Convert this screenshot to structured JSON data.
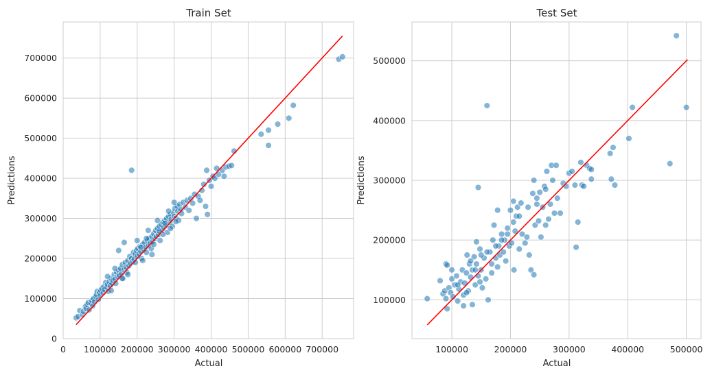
{
  "chart_data": [
    {
      "type": "scatter",
      "title": "Train Set",
      "xlabel": "Actual",
      "ylabel": "Predictions",
      "xlim": [
        0,
        785000
      ],
      "ylim": [
        0,
        790000
      ],
      "xticks": [
        "0",
        "100000",
        "200000",
        "300000",
        "400000",
        "500000",
        "600000",
        "700000"
      ],
      "xtick_values": [
        0,
        100000,
        200000,
        300000,
        400000,
        500000,
        600000,
        700000
      ],
      "yticks": [
        "0",
        "100000",
        "200000",
        "300000",
        "400000",
        "500000",
        "600000",
        "700000"
      ],
      "ytick_values": [
        0,
        100000,
        200000,
        300000,
        400000,
        500000,
        600000,
        700000
      ],
      "grid": true,
      "point_color": "#1f77b4",
      "line_color": "#ff0000",
      "reference_line": {
        "x": [
          35000,
          755000
        ],
        "y": [
          35000,
          755000
        ]
      },
      "points": [
        [
          35000,
          52000
        ],
        [
          40000,
          55000
        ],
        [
          45000,
          70000
        ],
        [
          52000,
          60000
        ],
        [
          55000,
          68000
        ],
        [
          60000,
          80000
        ],
        [
          62000,
          75000
        ],
        [
          65000,
          85000
        ],
        [
          68000,
          90000
        ],
        [
          70000,
          72000
        ],
        [
          75000,
          88000
        ],
        [
          78000,
          95000
        ],
        [
          80000,
          82000
        ],
        [
          82000,
          100000
        ],
        [
          85000,
          92000
        ],
        [
          88000,
          105000
        ],
        [
          90000,
          110000
        ],
        [
          92000,
          118000
        ],
        [
          95000,
          98000
        ],
        [
          98000,
          115000
        ],
        [
          100000,
          108000
        ],
        [
          102000,
          120000
        ],
        [
          105000,
          125000
        ],
        [
          108000,
          115000
        ],
        [
          110000,
          130000
        ],
        [
          112000,
          122000
        ],
        [
          115000,
          140000
        ],
        [
          118000,
          128000
        ],
        [
          120000,
          135000
        ],
        [
          122000,
          118000
        ],
        [
          125000,
          142000
        ],
        [
          128000,
          132000
        ],
        [
          130000,
          150000
        ],
        [
          132000,
          138000
        ],
        [
          135000,
          145000
        ],
        [
          138000,
          160000
        ],
        [
          140000,
          148000
        ],
        [
          142000,
          138000
        ],
        [
          145000,
          165000
        ],
        [
          148000,
          155000
        ],
        [
          150000,
          170000
        ],
        [
          152000,
          158000
        ],
        [
          155000,
          175000
        ],
        [
          158000,
          162000
        ],
        [
          160000,
          185000
        ],
        [
          162000,
          150000
        ],
        [
          165000,
          172000
        ],
        [
          168000,
          190000
        ],
        [
          170000,
          178000
        ],
        [
          172000,
          165000
        ],
        [
          175000,
          195000
        ],
        [
          178000,
          182000
        ],
        [
          180000,
          205000
        ],
        [
          182000,
          188000
        ],
        [
          185000,
          200000
        ],
        [
          188000,
          192000
        ],
        [
          190000,
          215000
        ],
        [
          192000,
          198000
        ],
        [
          195000,
          210000
        ],
        [
          198000,
          220000
        ],
        [
          200000,
          205000
        ],
        [
          202000,
          225000
        ],
        [
          205000,
          212000
        ],
        [
          208000,
          230000
        ],
        [
          210000,
          218000
        ],
        [
          212000,
          200000
        ],
        [
          215000,
          235000
        ],
        [
          218000,
          222000
        ],
        [
          220000,
          240000
        ],
        [
          222000,
          228000
        ],
        [
          225000,
          215000
        ],
        [
          228000,
          245000
        ],
        [
          230000,
          232000
        ],
        [
          232000,
          250000
        ],
        [
          235000,
          238000
        ],
        [
          238000,
          225000
        ],
        [
          240000,
          255000
        ],
        [
          242000,
          242000
        ],
        [
          245000,
          262000
        ],
        [
          248000,
          250000
        ],
        [
          250000,
          270000
        ],
        [
          252000,
          255000
        ],
        [
          255000,
          275000
        ],
        [
          258000,
          260000
        ],
        [
          260000,
          280000
        ],
        [
          262000,
          245000
        ],
        [
          265000,
          285000
        ],
        [
          268000,
          270000
        ],
        [
          270000,
          290000
        ],
        [
          272000,
          278000
        ],
        [
          275000,
          295000
        ],
        [
          278000,
          282000
        ],
        [
          280000,
          300000
        ],
        [
          282000,
          265000
        ],
        [
          285000,
          305000
        ],
        [
          288000,
          290000
        ],
        [
          290000,
          310000
        ],
        [
          292000,
          298000
        ],
        [
          295000,
          280000
        ],
        [
          298000,
          315000
        ],
        [
          300000,
          305000
        ],
        [
          302000,
          325000
        ],
        [
          305000,
          300000
        ],
        [
          308000,
          330000
        ],
        [
          310000,
          318000
        ],
        [
          312000,
          295000
        ],
        [
          315000,
          335000
        ],
        [
          318000,
          322000
        ],
        [
          320000,
          312000
        ],
        [
          325000,
          340000
        ],
        [
          330000,
          328000
        ],
        [
          335000,
          345000
        ],
        [
          340000,
          320000
        ],
        [
          345000,
          350000
        ],
        [
          350000,
          338000
        ],
        [
          355000,
          360000
        ],
        [
          360000,
          300000
        ],
        [
          365000,
          355000
        ],
        [
          370000,
          345000
        ],
        [
          375000,
          370000
        ],
        [
          380000,
          385000
        ],
        [
          385000,
          330000
        ],
        [
          388000,
          420000
        ],
        [
          390000,
          310000
        ],
        [
          395000,
          395000
        ],
        [
          400000,
          380000
        ],
        [
          405000,
          405000
        ],
        [
          410000,
          400000
        ],
        [
          415000,
          425000
        ],
        [
          420000,
          410000
        ],
        [
          430000,
          420000
        ],
        [
          435000,
          405000
        ],
        [
          440000,
          428000
        ],
        [
          448000,
          430000
        ],
        [
          455000,
          432000
        ],
        [
          462000,
          468000
        ],
        [
          120000,
          155000
        ],
        [
          165000,
          240000
        ],
        [
          150000,
          220000
        ],
        [
          185000,
          420000
        ],
        [
          200000,
          245000
        ],
        [
          215000,
          195000
        ],
        [
          230000,
          270000
        ],
        [
          240000,
          210000
        ],
        [
          255000,
          295000
        ],
        [
          270000,
          260000
        ],
        [
          285000,
          318000
        ],
        [
          300000,
          340000
        ],
        [
          130000,
          120000
        ],
        [
          140000,
          175000
        ],
        [
          160000,
          150000
        ],
        [
          175000,
          160000
        ],
        [
          195000,
          190000
        ],
        [
          210000,
          228000
        ],
        [
          225000,
          250000
        ],
        [
          245000,
          235000
        ],
        [
          260000,
          268000
        ],
        [
          275000,
          288000
        ],
        [
          290000,
          275000
        ],
        [
          305000,
          292000
        ],
        [
          535000,
          510000
        ],
        [
          555000,
          520000
        ],
        [
          555000,
          482000
        ],
        [
          580000,
          535000
        ],
        [
          610000,
          550000
        ],
        [
          622000,
          582000
        ],
        [
          745000,
          697000
        ],
        [
          755000,
          703000
        ]
      ]
    },
    {
      "type": "scatter",
      "title": "Test Set",
      "xlabel": "Actual",
      "ylabel": "Predictions",
      "xlim": [
        32000,
        525000
      ],
      "ylim": [
        35000,
        565000
      ],
      "xticks": [
        "100000",
        "200000",
        "300000",
        "400000",
        "500000"
      ],
      "xtick_values": [
        100000,
        200000,
        300000,
        400000,
        500000
      ],
      "yticks": [
        "100000",
        "200000",
        "300000",
        "400000",
        "500000"
      ],
      "ytick_values": [
        100000,
        200000,
        300000,
        400000,
        500000
      ],
      "grid": true,
      "point_color": "#1f77b4",
      "line_color": "#ff0000",
      "reference_line": {
        "x": [
          58000,
          502000
        ],
        "y": [
          58000,
          502000
        ]
      },
      "points": [
        [
          58000,
          102000
        ],
        [
          80000,
          132000
        ],
        [
          85000,
          110000
        ],
        [
          88000,
          115000
        ],
        [
          90000,
          102000
        ],
        [
          90000,
          160000
        ],
        [
          92000,
          158000
        ],
        [
          92000,
          85000
        ],
        [
          95000,
          120000
        ],
        [
          98000,
          112000
        ],
        [
          100000,
          135000
        ],
        [
          102000,
          105000
        ],
        [
          105000,
          125000
        ],
        [
          108000,
          140000
        ],
        [
          110000,
          98000
        ],
        [
          112000,
          118000
        ],
        [
          115000,
          130000
        ],
        [
          118000,
          150000
        ],
        [
          120000,
          108000
        ],
        [
          122000,
          128000
        ],
        [
          125000,
          145000
        ],
        [
          126000,
          175000
        ],
        [
          128000,
          115000
        ],
        [
          130000,
          160000
        ],
        [
          132000,
          138000
        ],
        [
          135000,
          150000
        ],
        [
          135000,
          92000
        ],
        [
          138000,
          172000
        ],
        [
          140000,
          125000
        ],
        [
          142000,
          160000
        ],
        [
          142000,
          197000
        ],
        [
          145000,
          288000
        ],
        [
          145000,
          140000
        ],
        [
          148000,
          185000
        ],
        [
          150000,
          150000
        ],
        [
          152000,
          120000
        ],
        [
          155000,
          170000
        ],
        [
          158000,
          135000
        ],
        [
          160000,
          425000
        ],
        [
          162000,
          100000
        ],
        [
          165000,
          180000
        ],
        [
          168000,
          160000
        ],
        [
          170000,
          200000
        ],
        [
          172000,
          225000
        ],
        [
          175000,
          170000
        ],
        [
          178000,
          250000
        ],
        [
          180000,
          190000
        ],
        [
          182000,
          175000
        ],
        [
          185000,
          210000
        ],
        [
          188000,
          180000
        ],
        [
          190000,
          200000
        ],
        [
          192000,
          165000
        ],
        [
          195000,
          220000
        ],
        [
          198000,
          190000
        ],
        [
          200000,
          250000
        ],
        [
          202000,
          195000
        ],
        [
          205000,
          265000
        ],
        [
          206000,
          150000
        ],
        [
          208000,
          215000
        ],
        [
          210000,
          240000
        ],
        [
          212000,
          255000
        ],
        [
          215000,
          185000
        ],
        [
          218000,
          262000
        ],
        [
          220000,
          210000
        ],
        [
          225000,
          195000
        ],
        [
          228000,
          205000
        ],
        [
          232000,
          175000
        ],
        [
          235000,
          150000
        ],
        [
          238000,
          278000
        ],
        [
          240000,
          300000
        ],
        [
          240000,
          142000
        ],
        [
          242000,
          225000
        ],
        [
          245000,
          260000
        ],
        [
          248000,
          232000
        ],
        [
          250000,
          280000
        ],
        [
          252000,
          205000
        ],
        [
          255000,
          255000
        ],
        [
          258000,
          290000
        ],
        [
          260000,
          225000
        ],
        [
          262000,
          315000
        ],
        [
          265000,
          235000
        ],
        [
          268000,
          260000
        ],
        [
          270000,
          325000
        ],
        [
          272000,
          300000
        ],
        [
          275000,
          245000
        ],
        [
          278000,
          325000
        ],
        [
          280000,
          270000
        ],
        [
          285000,
          245000
        ],
        [
          290000,
          295000
        ],
        [
          295000,
          290000
        ],
        [
          300000,
          312000
        ],
        [
          305000,
          315000
        ],
        [
          310000,
          292000
        ],
        [
          312000,
          188000
        ],
        [
          315000,
          230000
        ],
        [
          320000,
          330000
        ],
        [
          322000,
          292000
        ],
        [
          325000,
          290000
        ],
        [
          330000,
          325000
        ],
        [
          335000,
          320000
        ],
        [
          338000,
          318000
        ],
        [
          338000,
          302000
        ],
        [
          370000,
          345000
        ],
        [
          372000,
          302000
        ],
        [
          375000,
          355000
        ],
        [
          378000,
          292000
        ],
        [
          402000,
          370000
        ],
        [
          408000,
          422000
        ],
        [
          472000,
          328000
        ],
        [
          483000,
          542000
        ],
        [
          500000,
          422000
        ],
        [
          100000,
          150000
        ],
        [
          110000,
          125000
        ],
        [
          125000,
          112000
        ],
        [
          140000,
          150000
        ],
        [
          150000,
          175000
        ],
        [
          160000,
          180000
        ],
        [
          175000,
          190000
        ],
        [
          185000,
          200000
        ],
        [
          195000,
          210000
        ],
        [
          205000,
          230000
        ],
        [
          215000,
          240000
        ],
        [
          230000,
          255000
        ],
        [
          245000,
          270000
        ],
        [
          260000,
          285000
        ],
        [
          120000,
          90000
        ],
        [
          132000,
          165000
        ],
        [
          148000,
          130000
        ],
        [
          168000,
          145000
        ],
        [
          178000,
          155000
        ]
      ]
    }
  ]
}
